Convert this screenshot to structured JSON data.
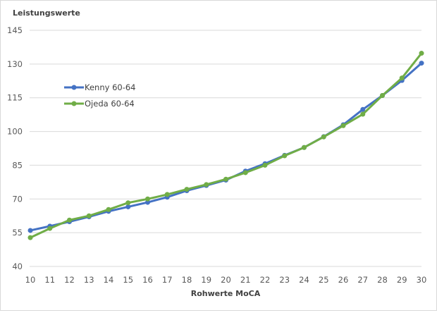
{
  "chart_data": {
    "type": "line",
    "title": "",
    "xlabel": "Rohwerte MoCA",
    "ylabel": "Leistungswerte",
    "x": [
      10,
      11,
      12,
      13,
      14,
      15,
      16,
      17,
      18,
      19,
      20,
      21,
      22,
      23,
      24,
      25,
      26,
      27,
      28,
      29,
      30
    ],
    "xlim": [
      10,
      30
    ],
    "ylim": [
      40,
      145
    ],
    "yticks": [
      40,
      55,
      70,
      85,
      100,
      115,
      130,
      145
    ],
    "xticks": [
      10,
      11,
      12,
      13,
      14,
      15,
      16,
      17,
      18,
      19,
      20,
      21,
      22,
      23,
      24,
      25,
      26,
      27,
      28,
      29,
      30
    ],
    "grid": "horizontal",
    "legend_position": "upper-left inside",
    "series": [
      {
        "name": "Kenny 60-64",
        "color": "#4472C4",
        "values": [
          56.0,
          57.9,
          59.9,
          62.1,
          64.5,
          66.5,
          68.5,
          70.8,
          73.7,
          76.0,
          78.4,
          82.4,
          85.7,
          89.4,
          92.9,
          97.7,
          103.0,
          109.8,
          116.0,
          122.7,
          130.4
        ]
      },
      {
        "name": "Ojeda 60-64",
        "color": "#70AD47",
        "values": [
          52.8,
          56.9,
          60.6,
          62.5,
          65.3,
          68.3,
          70.0,
          72.0,
          74.3,
          76.4,
          78.8,
          81.7,
          85.0,
          89.2,
          92.9,
          97.6,
          102.6,
          107.7,
          116.0,
          123.8,
          134.8
        ]
      }
    ]
  }
}
